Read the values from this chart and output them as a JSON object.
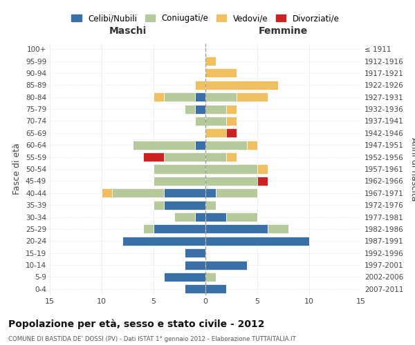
{
  "age_groups": [
    "0-4",
    "5-9",
    "10-14",
    "15-19",
    "20-24",
    "25-29",
    "30-34",
    "35-39",
    "40-44",
    "45-49",
    "50-54",
    "55-59",
    "60-64",
    "65-69",
    "70-74",
    "75-79",
    "80-84",
    "85-89",
    "90-94",
    "95-99",
    "100+"
  ],
  "birth_years": [
    "2007-2011",
    "2002-2006",
    "1997-2001",
    "1992-1996",
    "1987-1991",
    "1982-1986",
    "1977-1981",
    "1972-1976",
    "1967-1971",
    "1962-1966",
    "1957-1961",
    "1952-1956",
    "1947-1951",
    "1942-1946",
    "1937-1941",
    "1932-1936",
    "1927-1931",
    "1922-1926",
    "1917-1921",
    "1912-1916",
    "≤ 1911"
  ],
  "colors": {
    "celibi": "#3a6fa8",
    "coniugati": "#b5c99a",
    "vedovi": "#f0c060",
    "divorziati": "#cc2222"
  },
  "maschi": {
    "celibi": [
      2,
      4,
      2,
      2,
      8,
      5,
      1,
      4,
      4,
      0,
      0,
      0,
      1,
      0,
      0,
      1,
      1,
      0,
      0,
      0,
      0
    ],
    "coniugati": [
      0,
      0,
      0,
      0,
      0,
      1,
      2,
      1,
      5,
      5,
      5,
      4,
      6,
      0,
      1,
      1,
      3,
      0,
      0,
      0,
      0
    ],
    "vedovi": [
      0,
      0,
      0,
      0,
      0,
      0,
      0,
      0,
      1,
      0,
      0,
      0,
      0,
      0,
      0,
      0,
      1,
      1,
      0,
      0,
      0
    ],
    "divorziati": [
      0,
      0,
      0,
      0,
      0,
      0,
      0,
      0,
      0,
      0,
      0,
      2,
      0,
      0,
      0,
      0,
      0,
      0,
      0,
      0,
      0
    ]
  },
  "femmine": {
    "celibi": [
      2,
      0,
      4,
      0,
      10,
      6,
      2,
      0,
      1,
      0,
      0,
      0,
      0,
      0,
      0,
      0,
      0,
      0,
      0,
      0,
      0
    ],
    "coniugati": [
      0,
      1,
      0,
      0,
      0,
      2,
      3,
      1,
      4,
      5,
      5,
      2,
      4,
      0,
      2,
      2,
      3,
      0,
      0,
      0,
      0
    ],
    "vedovi": [
      0,
      0,
      0,
      0,
      0,
      0,
      0,
      0,
      0,
      0,
      1,
      1,
      1,
      2,
      1,
      1,
      3,
      7,
      3,
      1,
      0
    ],
    "divorziati": [
      0,
      0,
      0,
      0,
      0,
      0,
      0,
      0,
      0,
      1,
      0,
      0,
      0,
      1,
      0,
      0,
      0,
      0,
      0,
      0,
      0
    ]
  },
  "xlim": 15,
  "title": "Popolazione per età, sesso e stato civile - 2012",
  "subtitle": "COMUNE DI BASTIDA DE' DOSSI (PV) - Dati ISTAT 1° gennaio 2012 - Elaborazione TUTTAITALIA.IT",
  "xlabel_left": "Maschi",
  "xlabel_right": "Femmine",
  "ylabel_left": "Fasce di età",
  "ylabel_right": "Anni di nascita",
  "legend_labels": [
    "Celibi/Nubili",
    "Coniugati/e",
    "Vedovi/e",
    "Divorziati/e"
  ],
  "background_color": "#ffffff",
  "grid_color": "#cccccc"
}
